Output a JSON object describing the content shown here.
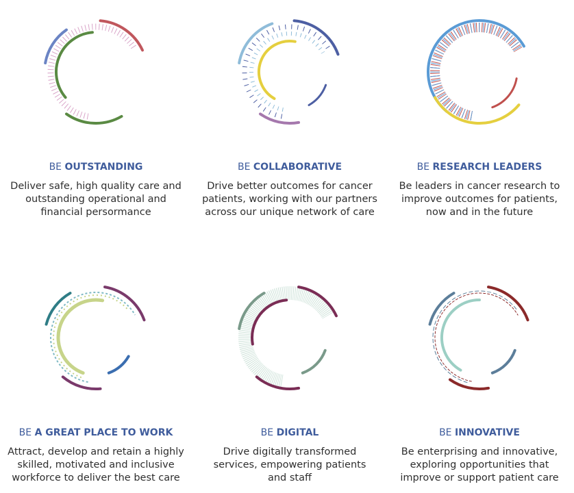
{
  "items": [
    {
      "prefix": "BE",
      "title": "OUTSTANDING",
      "lines": [
        "Deliver safe, high quality care and",
        "outstanding operational and",
        "financial persormance"
      ]
    },
    {
      "prefix": "BE",
      "title": "COLLABORATIVE",
      "lines": [
        "Drive better outcomes for cancer",
        "patients, working with our partners",
        "across our unique network of care"
      ]
    },
    {
      "prefix": "BE",
      "title": "RESEARCH LEADERS",
      "lines": [
        "Be leaders in cancer research to",
        "improve outcomes for patients,",
        "now and in the future"
      ]
    },
    {
      "prefix": "BE",
      "title": "A GREAT PLACE  TO WORK",
      "lines": [
        "Attract, develop and retain a highly",
        "skilled, motivated and inclusive",
        "workforce to deliver the best care"
      ]
    },
    {
      "prefix": "BE",
      "title": "DIGITAL",
      "lines": [
        "Drive digitally transformed",
        "services, empowering patients",
        "and staff"
      ]
    },
    {
      "prefix": "BE",
      "title": "INNOVATIVE",
      "lines": [
        "Be enterprising and innovative,",
        "exploring opportunities that",
        "improve or support patient care"
      ]
    }
  ]
}
